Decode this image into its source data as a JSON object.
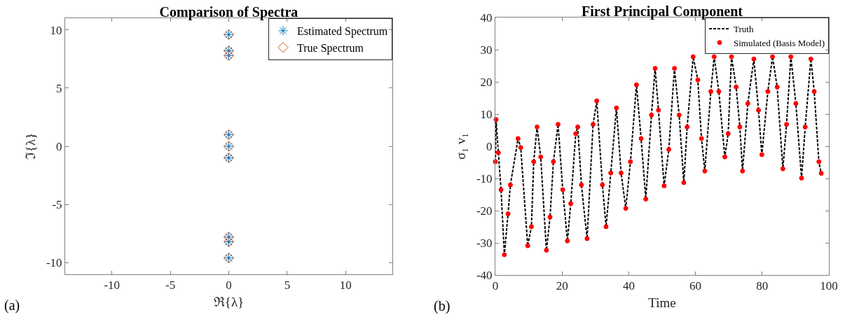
{
  "chart_data": [
    {
      "type": "scatter",
      "title": "Comparison of Spectra",
      "xlabel": "ℜ{λ}",
      "ylabel": "ℑ{λ}",
      "annotations": [
        "(a)"
      ],
      "legend": "top right",
      "grid": false,
      "xlim": [
        -14,
        14
      ],
      "xticks": [
        -10,
        -5,
        0,
        5,
        10
      ],
      "ylim": [
        -11,
        11
      ],
      "yticks": [
        -10,
        -5,
        0,
        5,
        10
      ],
      "series": [
        {
          "name": "Estimated Spectrum",
          "color": "#0072bd",
          "marker": "cross",
          "x": [
            0,
            0,
            0,
            0,
            0,
            0,
            0,
            0,
            0
          ],
          "values": [
            9.6,
            8.2,
            7.8,
            1.0,
            0,
            -1.0,
            -7.8,
            -8.2,
            -9.6
          ]
        },
        {
          "name": "True Spectrum",
          "color": "#d95319",
          "marker": "diamond",
          "x": [
            0,
            0,
            0,
            0,
            0,
            0,
            0,
            0,
            0
          ],
          "values": [
            9.6,
            8.2,
            7.8,
            1.0,
            0,
            -1.0,
            -7.8,
            -8.2,
            -9.6
          ]
        }
      ]
    },
    {
      "type": "line",
      "title": "First Principal Component",
      "xlabel": "Time",
      "ylabel": "σ₁ v₁",
      "annotations": [
        "(b)"
      ],
      "legend": "top right",
      "grid": false,
      "xlim": [
        0,
        100
      ],
      "xticks": [
        0,
        20,
        40,
        60,
        80,
        100
      ],
      "ylim": [
        -40,
        40
      ],
      "yticks": [
        -40,
        -30,
        -20,
        -10,
        0,
        10,
        20,
        30,
        40
      ],
      "series": [
        {
          "name": "Truth",
          "type": "line",
          "color": "#000000",
          "line_style": "dashed",
          "x": [
            0,
            0.2,
            0.9,
            1.7,
            2.7,
            3.8,
            4.5,
            6.8,
            7.6,
            9.7,
            10.8,
            11.5,
            12.5,
            13.6,
            15.3,
            16.4,
            17.4,
            18.8,
            20.2,
            21.6,
            22.6,
            24.1,
            24.7,
            25.8,
            27.5,
            29.3,
            30.4,
            32.1,
            33.2,
            34.6,
            36.3,
            37.7,
            39.1,
            40.5,
            42.3,
            43.7,
            45.1,
            46.8,
            47.9,
            48.9,
            50.6,
            52,
            53.7,
            55.1,
            56.5,
            57.5,
            59.3,
            60.7,
            61.8,
            62.8,
            64.6,
            65.6,
            67,
            68.8,
            69.8,
            70.8,
            72.2,
            73.3,
            74.1,
            75.7,
            77.5,
            78.9,
            79.9,
            81.7,
            83.1,
            84.5,
            86.2,
            87.3,
            88.6,
            90.1,
            91.8,
            92.9,
            94.6,
            95.6,
            97,
            97.7
          ],
          "values": [
            -4.8,
            8.3,
            -2,
            -13.5,
            -33.7,
            -21,
            -12,
            2.4,
            -0.4,
            -30.9,
            -25,
            -4.8,
            6,
            -3.3,
            -32.3,
            -22,
            -4.8,
            6.8,
            -13.5,
            -29.4,
            -17.8,
            3.9,
            6,
            -12,
            -28.7,
            6.8,
            14.1,
            -12,
            -25,
            -8.3,
            11.9,
            -8.3,
            -19.3,
            -4.8,
            19.1,
            2.4,
            -16.4,
            9.7,
            24.2,
            11.2,
            -12.3,
            -1,
            24.2,
            9.7,
            -11.3,
            6,
            27.8,
            20.6,
            2.4,
            -7.7,
            17,
            27.8,
            17,
            -3.3,
            3.9,
            27.8,
            18.4,
            6,
            -7.7,
            13.3,
            27.1,
            11.2,
            -2.6,
            17,
            27.8,
            18.4,
            -7,
            6.8,
            27.8,
            13.3,
            -9.9,
            6,
            27.1,
            17,
            -4.8,
            -8.4
          ]
        },
        {
          "name": "Simulated (Basis Model)",
          "type": "scatter",
          "color": "#ff0000",
          "marker": "circle",
          "x": [
            0,
            0.2,
            0.9,
            1.7,
            2.7,
            3.8,
            4.5,
            6.8,
            7.6,
            9.7,
            10.8,
            11.5,
            12.5,
            13.6,
            15.3,
            16.4,
            17.4,
            18.8,
            20.2,
            21.6,
            22.6,
            24.1,
            24.7,
            25.8,
            27.5,
            29.3,
            30.4,
            32.1,
            33.2,
            34.6,
            36.3,
            37.7,
            39.1,
            40.5,
            42.3,
            43.7,
            45.1,
            46.8,
            47.9,
            48.9,
            50.6,
            52,
            53.7,
            55.1,
            56.5,
            57.5,
            59.3,
            60.7,
            61.8,
            62.8,
            64.6,
            65.6,
            67,
            68.8,
            69.8,
            70.8,
            72.2,
            73.3,
            74.1,
            75.7,
            77.5,
            78.9,
            79.9,
            81.7,
            83.1,
            84.5,
            86.2,
            87.3,
            88.6,
            90.1,
            91.8,
            92.9,
            94.6,
            95.6,
            97,
            97.7
          ],
          "values": [
            -4.8,
            8.3,
            -2,
            -13.5,
            -33.7,
            -21,
            -12,
            2.4,
            -0.4,
            -30.9,
            -25,
            -4.8,
            6,
            -3.3,
            -32.3,
            -22,
            -4.8,
            6.8,
            -13.5,
            -29.4,
            -17.8,
            3.9,
            6,
            -12,
            -28.7,
            6.8,
            14.1,
            -12,
            -25,
            -8.3,
            11.9,
            -8.3,
            -19.3,
            -4.8,
            19.1,
            2.4,
            -16.4,
            9.7,
            24.2,
            11.2,
            -12.3,
            -1,
            24.2,
            9.7,
            -11.3,
            6,
            27.8,
            20.6,
            2.4,
            -7.7,
            17,
            27.8,
            17,
            -3.3,
            3.9,
            27.8,
            18.4,
            6,
            -7.7,
            13.3,
            27.1,
            11.2,
            -2.6,
            17,
            27.8,
            18.4,
            -7,
            6.8,
            27.8,
            13.3,
            -9.9,
            6,
            27.1,
            17,
            -4.8,
            -8.4
          ]
        }
      ]
    }
  ]
}
